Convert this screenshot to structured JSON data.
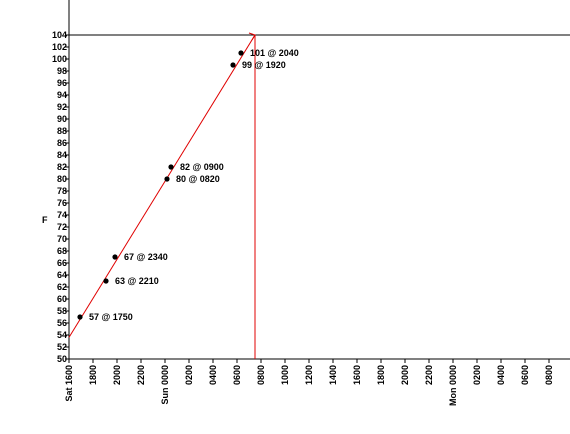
{
  "chart_data": {
    "type": "line",
    "title": "",
    "ylabel": "F",
    "xlabel": "",
    "ylim": [
      50,
      104
    ],
    "y_ticks": [
      50,
      52,
      54,
      56,
      58,
      60,
      62,
      64,
      66,
      68,
      70,
      72,
      74,
      76,
      78,
      80,
      82,
      84,
      86,
      88,
      90,
      92,
      94,
      96,
      98,
      100,
      102,
      104
    ],
    "x_ticks": [
      "Sat 1600",
      "1800",
      "2000",
      "2200",
      "Sun 0000",
      "0200",
      "0400",
      "0600",
      "0800",
      "1000",
      "1200",
      "1400",
      "1600",
      "1800",
      "2000",
      "2200",
      "Mon 0000",
      "0200",
      "0400",
      "0600",
      "0800"
    ],
    "points": [
      {
        "x": "Sat 1750",
        "y": 57,
        "label": "57 @ 1750"
      },
      {
        "x": "Sat 2210",
        "y": 63,
        "label": "63 @ 2210"
      },
      {
        "x": "Sat 2340",
        "y": 67,
        "label": "67 @ 2340"
      },
      {
        "x": "Sun 0820",
        "y": 80,
        "label": "80 @ 0820"
      },
      {
        "x": "Sun 0900",
        "y": 82,
        "label": "82 @ 0900"
      },
      {
        "x": "Sun 1920",
        "y": 99,
        "label": "99 @ 1920"
      },
      {
        "x": "Sun 2040",
        "y": 101,
        "label": "101 @ 2040"
      }
    ],
    "trend_line": {
      "start": {
        "x": "Sat 1600",
        "y": 53.6
      },
      "end": {
        "x": "Sun 2300",
        "y": 104
      }
    },
    "vertical_marker": {
      "x": "Sun 2300"
    },
    "reference_line_y": 104,
    "colors": {
      "trend": "#e00000",
      "points": "#000000",
      "axes": "#000000"
    }
  }
}
